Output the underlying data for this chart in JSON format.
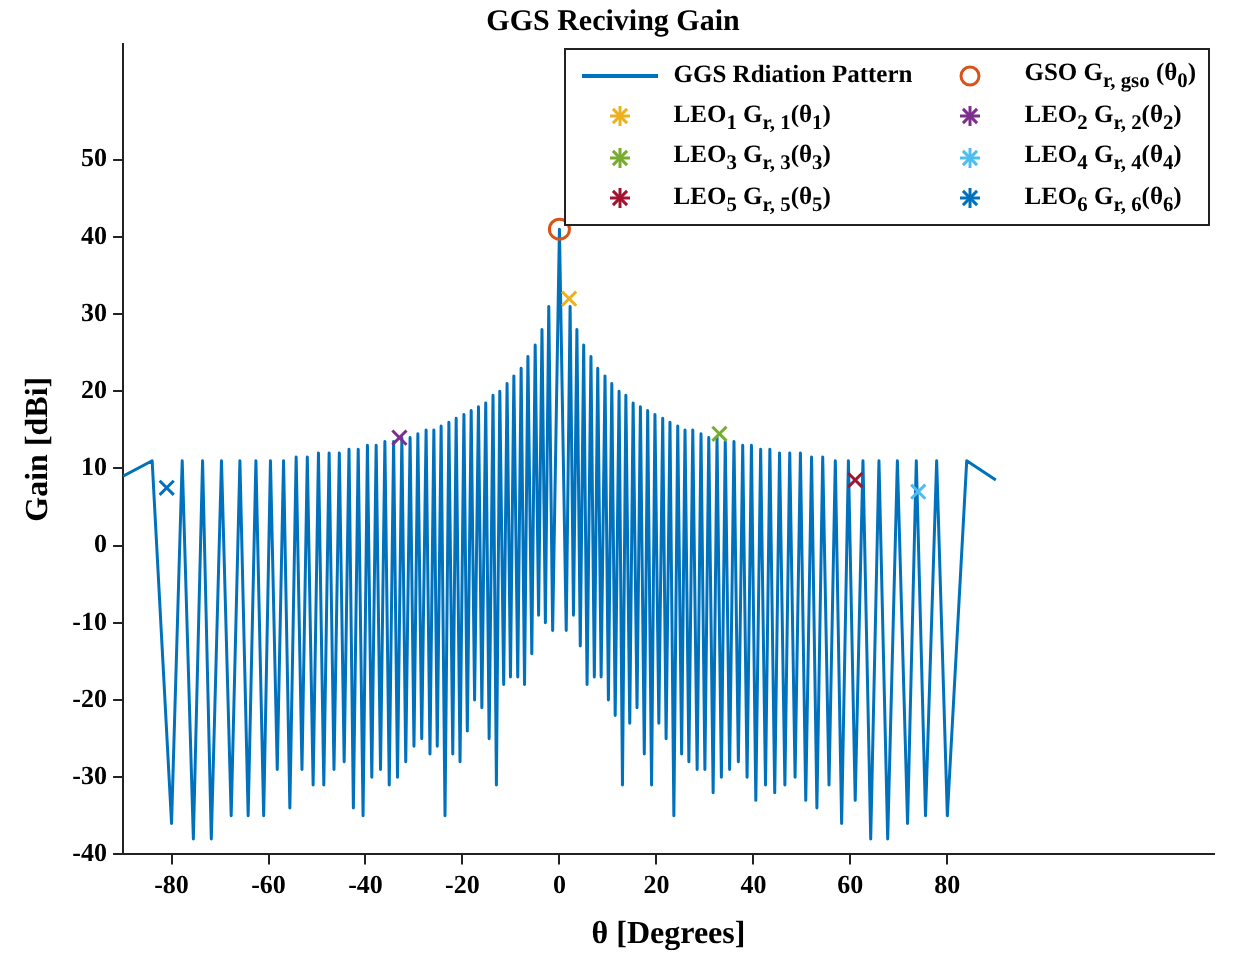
{
  "chart_data": {
    "type": "line",
    "title": "GGS Reciving Gain",
    "xlabel": "θ [Degrees]",
    "ylabel": "Gain [dBi]",
    "xlim": [
      -90,
      135
    ],
    "xticks": [
      -80,
      -60,
      -40,
      -20,
      0,
      20,
      40,
      60,
      80
    ],
    "ylim": [
      -40,
      65
    ],
    "yticks": [
      -40,
      -30,
      -20,
      -10,
      0,
      10,
      20,
      30,
      40,
      50
    ],
    "grid": false,
    "legend": "top right",
    "series": [
      {
        "name": "GGS Rdiation Pattern",
        "color": "#0072bd",
        "marker": "none",
        "x": [
          -90,
          -84,
          -80,
          -77.8,
          -75.5,
          -73.6,
          -71.8,
          -69.7,
          -67.7,
          -65.9,
          -64.2,
          -62.6,
          -61,
          -59.6,
          -58.2,
          -56.9,
          -55.6,
          -54.3,
          -53.1,
          -52,
          -50.8,
          -49.7,
          -48.6,
          -47.5,
          -46.5,
          -45.4,
          -44.4,
          -43.4,
          -42.5,
          -41.5,
          -40.5,
          -39.6,
          -38.7,
          -37.8,
          -36.9,
          -36,
          -35.1,
          -34.2,
          -33.4,
          -32.5,
          -31.7,
          -30.8,
          -30,
          -29.2,
          -28.4,
          -27.5,
          -26.7,
          -25.9,
          -25.2,
          -24.4,
          -23.6,
          -22.8,
          -22,
          -21.3,
          -20.5,
          -19.7,
          -19,
          -18.2,
          -17.5,
          -16.7,
          -16,
          -15.2,
          -14.5,
          -13.7,
          -13,
          -12.3,
          -11.5,
          -10.8,
          -10.1,
          -9.4,
          -8.6,
          -7.9,
          -7.2,
          -6.5,
          -5.7,
          -5,
          -4.3,
          -3.6,
          -2.9,
          -2.2,
          -1.4,
          0,
          1.4,
          2.2,
          2.9,
          3.6,
          4.3,
          5,
          5.7,
          6.5,
          7.2,
          7.9,
          8.6,
          9.4,
          10.1,
          10.8,
          11.5,
          12.3,
          13,
          13.7,
          14.5,
          15.2,
          16,
          16.7,
          17.5,
          18.2,
          19,
          19.7,
          20.5,
          21.3,
          22,
          22.8,
          23.6,
          24.4,
          25.2,
          25.9,
          26.7,
          27.5,
          28.4,
          29.2,
          30,
          30.8,
          31.7,
          32.5,
          33.4,
          34.2,
          35.1,
          36,
          36.9,
          37.8,
          38.7,
          39.6,
          40.5,
          41.5,
          42.5,
          43.4,
          44.4,
          45.4,
          46.5,
          47.5,
          48.6,
          49.7,
          50.8,
          52,
          53.1,
          54.3,
          55.6,
          56.9,
          58.2,
          59.6,
          61,
          62.6,
          64.2,
          65.9,
          67.7,
          69.7,
          71.8,
          73.6,
          75.5,
          77.8,
          80,
          84,
          90
        ],
        "values": [
          9,
          11,
          -36,
          11,
          -38,
          11,
          -38,
          11,
          -35,
          11,
          -35,
          11,
          -35,
          11,
          -29,
          11,
          -34,
          11.5,
          -29,
          11.5,
          -31,
          12,
          -31,
          12,
          -29,
          12,
          -28,
          12.5,
          -34,
          12.5,
          -35,
          13,
          -30,
          13,
          -29,
          13.5,
          -31,
          13.5,
          -30,
          14,
          -28,
          14,
          -26,
          14.5,
          -25,
          15,
          -27,
          15,
          -26,
          15.5,
          -35,
          16,
          -27,
          16.5,
          -28,
          17,
          -24,
          17.5,
          -20,
          18,
          -21,
          18.5,
          -25,
          19.5,
          -31,
          20,
          -18,
          21,
          -17,
          22,
          -17,
          23,
          -18,
          24.5,
          -14,
          26,
          -9,
          28,
          -10,
          31,
          -11,
          41,
          -11,
          31,
          -9,
          28,
          -13,
          26,
          -18,
          24.5,
          -17,
          23,
          -17,
          22,
          -20,
          21,
          -22,
          20,
          -31,
          19.5,
          -23,
          18.5,
          -21,
          18,
          -27,
          17.5,
          -31,
          17,
          -23,
          16.5,
          -25,
          16,
          -35,
          15.5,
          -27,
          15,
          -28,
          15,
          -29,
          14.5,
          -29,
          14,
          -32,
          14,
          -30,
          13.5,
          -29,
          13.5,
          -28,
          13,
          -30,
          13,
          -33,
          12.5,
          -31,
          12.5,
          -32,
          12,
          -31,
          12,
          -30,
          12,
          -33,
          11.5,
          -34,
          11.5,
          -31,
          11,
          -36,
          11,
          -33,
          11,
          -38,
          11,
          -38,
          11,
          -36,
          11,
          -35,
          11,
          -35,
          11,
          8.5
        ]
      },
      {
        "name": "GSO G$_{r, gso}$ (θ$_{0}$)",
        "type": "scatter",
        "color": "#d95319",
        "marker": "circle",
        "x": [
          0
        ],
        "values": [
          41
        ]
      },
      {
        "name": "LEO$_{1}$ G$_{r, 1}$(θ$_{1}$)",
        "type": "scatter",
        "color": "#edb120",
        "marker": "cross",
        "x": [
          2
        ],
        "values": [
          32
        ]
      },
      {
        "name": "LEO$_{2}$ G$_{r, 2}$(θ$_{2}$)",
        "type": "scatter",
        "color": "#7e2f8e",
        "marker": "cross",
        "x": [
          -33
        ],
        "values": [
          14
        ]
      },
      {
        "name": "LEO$_{3}$ G$_{r, 3}$(θ$_{3}$)",
        "type": "scatter",
        "color": "#77ac30",
        "marker": "cross",
        "x": [
          33
        ],
        "values": [
          14.5
        ]
      },
      {
        "name": "LEO$_{4}$ G$_{r, 4}$(θ$_{4}$)",
        "type": "scatter",
        "color": "#4dbeee",
        "marker": "cross",
        "x": [
          74
        ],
        "values": [
          7
        ]
      },
      {
        "name": "LEO$_{5}$ G$_{r, 5}$(θ$_{5}$)",
        "type": "scatter",
        "color": "#a2142f",
        "marker": "cross",
        "x": [
          61
        ],
        "values": [
          8.5
        ]
      },
      {
        "name": "LEO$_{6}$ G$_{r, 6}$(θ$_{6}$)",
        "type": "scatter",
        "color": "#0072bd",
        "marker": "cross",
        "x": [
          -81
        ],
        "values": [
          7.5
        ]
      }
    ]
  }
}
